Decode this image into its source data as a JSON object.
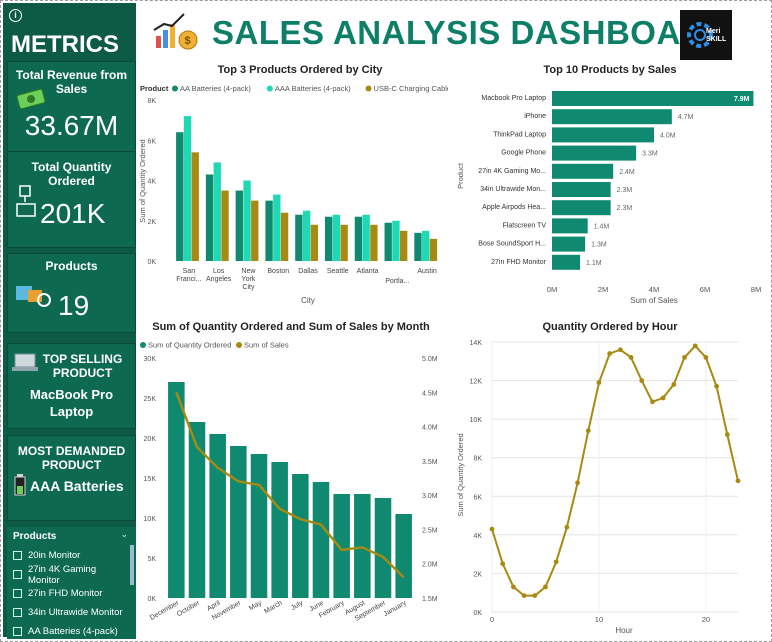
{
  "sidebar": {
    "metrics_title": "METRICS",
    "total_revenue_label": "Total Revenue from Sales",
    "total_revenue_value": "33.67M",
    "total_qty_label": "Total Quantity Ordered",
    "total_qty_value": "201K",
    "products_label": "Products",
    "products_value": "19",
    "top_selling_label": "TOP SELLING PRODUCT",
    "top_selling_value": "MacBook Pro Laptop",
    "most_demanded_label": "MOST DEMANDED PRODUCT",
    "most_demanded_value": "AAA Batteries",
    "slicer_title": "Products",
    "slicer_items": [
      "20in Monitor",
      "27in 4K Gaming Monitor",
      "27in FHD Monitor",
      "34in Ultrawide Monitor",
      "AA Batteries (4-pack)"
    ]
  },
  "header": {
    "title": "SALES ANALYSIS DASHBOARD",
    "logo_text": "Meri SKILL"
  },
  "colors": {
    "teal_dark": "#0f8a70",
    "teal_light": "#1fd8b4",
    "gold": "#a88a12",
    "sidebar": "#0d5b45"
  },
  "chart_data": [
    {
      "type": "bar",
      "title": "Top 3 Products Ordered by City",
      "legend_title": "Product",
      "legend_position": "top",
      "xlabel": "City",
      "ylabel": "Sum of Quantity Ordered",
      "categories": [
        "San Franci...",
        "Los Angeles",
        "New York City",
        "Boston",
        "Dallas",
        "Seattle",
        "Atlanta",
        "Portla...",
        "Austin"
      ],
      "series": [
        {
          "name": "AA Batteries (4-pack)",
          "values": [
            6400,
            4300,
            3500,
            3000,
            2300,
            2200,
            2200,
            1900,
            1400
          ]
        },
        {
          "name": "AAA Batteries (4-pack)",
          "values": [
            7200,
            4900,
            4000,
            3300,
            2500,
            2300,
            2300,
            2000,
            1500
          ]
        },
        {
          "name": "USB-C Charging Cable",
          "values": [
            5400,
            3500,
            3000,
            2400,
            1800,
            1800,
            1800,
            1500,
            1100
          ]
        }
      ],
      "yticks": [
        "0K",
        "2K",
        "4K",
        "6K",
        "8K"
      ],
      "ylim": [
        0,
        8000
      ]
    },
    {
      "type": "bar",
      "title": "Top 10 Products by Sales",
      "xlabel": "Sum of Sales",
      "ylabel": "Product",
      "categories": [
        "Macbook Pro Laptop",
        "iPhone",
        "ThinkPad Laptop",
        "Google Phone",
        "27in 4K Gaming Mo...",
        "34in Ultrawide Mon...",
        "Apple Airpods Hea...",
        "Flatscreen TV",
        "Bose SoundSport H...",
        "27in FHD Monitor"
      ],
      "values": [
        7.9,
        4.7,
        4.0,
        3.3,
        2.4,
        2.3,
        2.3,
        1.4,
        1.3,
        1.1
      ],
      "data_labels": [
        "7.9M",
        "4.7M",
        "4.0M",
        "3.3M",
        "2.4M",
        "2.3M",
        "2.3M",
        "1.4M",
        "1.3M",
        "1.1M"
      ],
      "xticks": [
        "0M",
        "2M",
        "4M",
        "6M",
        "8M"
      ],
      "xlim": [
        0,
        8
      ]
    },
    {
      "type": "bar",
      "title": "Sum of Quantity Ordered and Sum of Sales by Month",
      "legend_position": "top-left",
      "categories": [
        "December",
        "October",
        "April",
        "November",
        "May",
        "March",
        "July",
        "June",
        "February",
        "August",
        "September",
        "January"
      ],
      "series": [
        {
          "name": "Sum of Quantity Ordered",
          "type": "bar",
          "values": [
            27000,
            22000,
            20500,
            19000,
            18000,
            17000,
            15500,
            14500,
            13000,
            13000,
            12500,
            10500
          ]
        },
        {
          "name": "Sum of Sales",
          "type": "line",
          "axis": "right",
          "values": [
            4.5,
            3.7,
            3.4,
            3.2,
            3.15,
            2.8,
            2.65,
            2.57,
            2.2,
            2.24,
            2.1,
            1.8
          ]
        }
      ],
      "yticks_left": [
        "0K",
        "5K",
        "10K",
        "15K",
        "20K",
        "25K",
        "30K"
      ],
      "ylim_left": [
        0,
        30000
      ],
      "yticks_right": [
        "1.5M",
        "2.0M",
        "2.5M",
        "3.0M",
        "3.5M",
        "4.0M",
        "4.5M",
        "5.0M"
      ],
      "ylim_right": [
        1.5,
        5.0
      ]
    },
    {
      "type": "line",
      "title": "Quantity Ordered by Hour",
      "xlabel": "Hour",
      "ylabel": "Sum of Quantity Ordered",
      "x": [
        0,
        1,
        2,
        3,
        4,
        5,
        6,
        7,
        8,
        9,
        10,
        11,
        12,
        13,
        14,
        15,
        16,
        17,
        18,
        19,
        20,
        21,
        22,
        23
      ],
      "values": [
        4300,
        2500,
        1300,
        850,
        850,
        1300,
        2600,
        4400,
        6700,
        9400,
        11900,
        13400,
        13600,
        13200,
        12000,
        10900,
        11100,
        11800,
        13200,
        13800,
        13200,
        11700,
        9200,
        6800
      ],
      "xticks": [
        "0",
        "10",
        "20"
      ],
      "yticks": [
        "0K",
        "2K",
        "4K",
        "6K",
        "8K",
        "10K",
        "12K",
        "14K"
      ],
      "ylim": [
        0,
        14000
      ],
      "grid": true
    }
  ]
}
